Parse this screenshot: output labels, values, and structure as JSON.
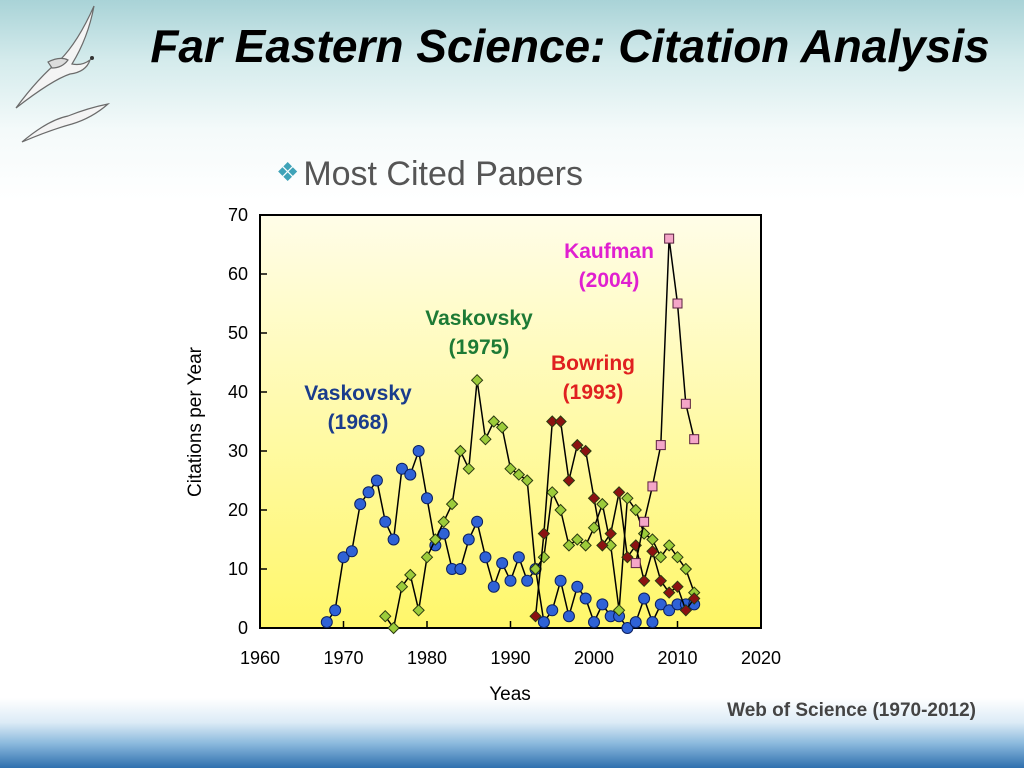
{
  "slide": {
    "title": "Far Eastern Science: Citation Analysis",
    "bullet": "Most Cited Papers",
    "source": "Web of Science (1970-2012)"
  },
  "colors": {
    "bullet_mark": "#3fa3b8"
  },
  "chart_data": {
    "type": "scatter",
    "title": "",
    "xlabel": "Yeas",
    "ylabel": "Citations per Year",
    "xlim": [
      1960,
      2020
    ],
    "ylim": [
      0,
      70
    ],
    "xticks": [
      1960,
      1970,
      1980,
      1990,
      2000,
      2010,
      2020
    ],
    "yticks": [
      0,
      10,
      20,
      30,
      40,
      50,
      60,
      70
    ],
    "grid": false,
    "plot_background": "vertical gradient light yellow to yellow",
    "series": [
      {
        "name": "Vaskovsky (1968)",
        "marker": "circle",
        "color": "#2f62d6",
        "label_color": "#1a3c8c",
        "x": [
          1968,
          1969,
          1970,
          1971,
          1972,
          1973,
          1974,
          1975,
          1976,
          1977,
          1978,
          1979,
          1980,
          1981,
          1982,
          1983,
          1984,
          1985,
          1986,
          1987,
          1988,
          1989,
          1990,
          1991,
          1992,
          1993,
          1994,
          1995,
          1996,
          1997,
          1998,
          1999,
          2000,
          2001,
          2002,
          2003,
          2004,
          2005,
          2006,
          2007,
          2008,
          2009,
          2010,
          2011,
          2012
        ],
        "y": [
          1,
          3,
          12,
          13,
          21,
          23,
          25,
          18,
          15,
          27,
          26,
          30,
          22,
          14,
          16,
          10,
          10,
          15,
          18,
          12,
          7,
          11,
          8,
          12,
          8,
          10,
          1,
          3,
          8,
          2,
          7,
          5,
          1,
          4,
          2,
          2,
          0,
          1,
          5,
          1,
          4,
          3,
          4,
          4,
          4
        ]
      },
      {
        "name": "Vaskovsky (1975)",
        "marker": "diamond",
        "color": "#9ccc3a",
        "label_color": "#1d7a35",
        "x": [
          1975,
          1976,
          1977,
          1978,
          1979,
          1980,
          1981,
          1982,
          1983,
          1984,
          1985,
          1986,
          1987,
          1988,
          1989,
          1990,
          1991,
          1992,
          1993,
          1994,
          1995,
          1996,
          1997,
          1998,
          1999,
          2000,
          2001,
          2002,
          2003,
          2004,
          2005,
          2006,
          2007,
          2008,
          2009,
          2010,
          2011,
          2012
        ],
        "y": [
          2,
          0,
          7,
          9,
          3,
          12,
          15,
          18,
          21,
          30,
          27,
          42,
          32,
          35,
          34,
          27,
          26,
          25,
          10,
          12,
          23,
          20,
          14,
          15,
          14,
          17,
          21,
          14,
          3,
          22,
          20,
          16,
          15,
          12,
          14,
          12,
          10,
          6
        ]
      },
      {
        "name": "Bowring (1993)",
        "marker": "diamond",
        "color": "#8b1212",
        "label_color": "#e02020",
        "x": [
          1993,
          1994,
          1995,
          1996,
          1997,
          1998,
          1999,
          2000,
          2001,
          2002,
          2003,
          2004,
          2005,
          2006,
          2007,
          2008,
          2009,
          2010,
          2011,
          2012
        ],
        "y": [
          2,
          16,
          35,
          35,
          25,
          31,
          30,
          22,
          14,
          16,
          23,
          12,
          14,
          8,
          13,
          8,
          6,
          7,
          3,
          5
        ]
      },
      {
        "name": "Kaufman (2004)",
        "marker": "square",
        "color": "#f4a6c8",
        "label_color": "#e020d0",
        "x": [
          2005,
          2006,
          2007,
          2008,
          2009,
          2010,
          2011,
          2012
        ],
        "y": [
          11,
          18,
          24,
          31,
          66,
          55,
          38,
          32
        ]
      }
    ],
    "annotations": [
      {
        "line1": "Vaskovsky",
        "line2": "(1968)",
        "color": "#1a3c8c"
      },
      {
        "line1": "Vaskovsky",
        "line2": "(1975)",
        "color": "#1d7a35"
      },
      {
        "line1": "Bowring",
        "line2": "(1993)",
        "color": "#e02020"
      },
      {
        "line1": "Kaufman",
        "line2": "(2004)",
        "color": "#e020d0"
      }
    ]
  }
}
